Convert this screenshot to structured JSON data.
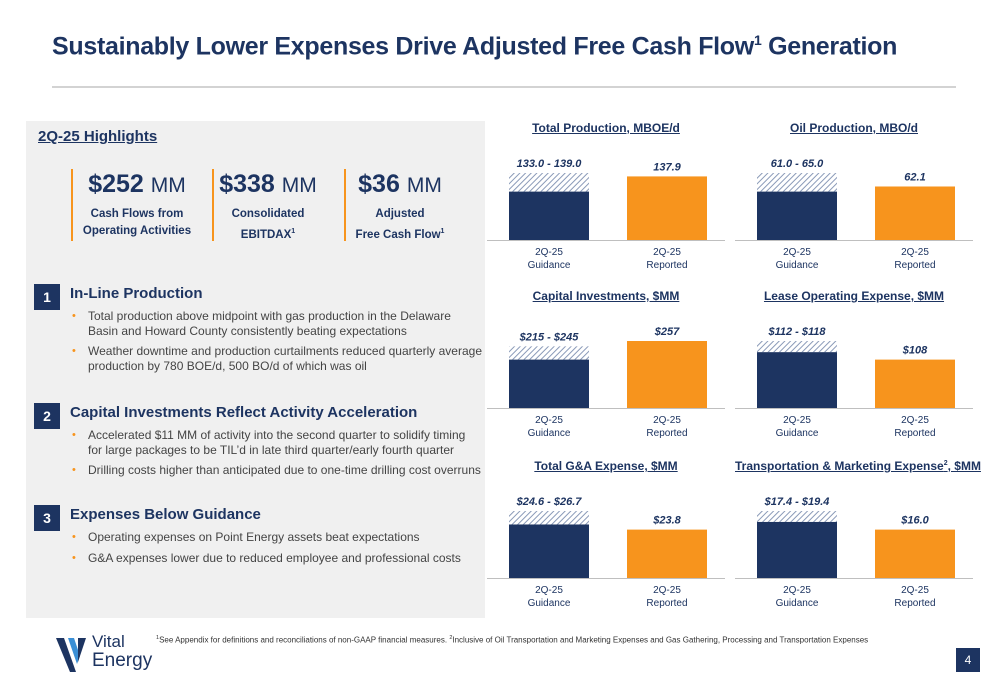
{
  "title": {
    "main": "Sustainably Lower Expenses Drive Adjusted Free Cash Flow",
    "sup": "1",
    "end": " Generation"
  },
  "highlights": {
    "heading": "2Q-25 Highlights",
    "kpis": [
      {
        "value": "$252",
        "unit": "MM",
        "line1": "Cash Flows from",
        "line2": "Operating Activities",
        "sup": ""
      },
      {
        "value": "$338",
        "unit": "MM",
        "line1": "Consolidated",
        "line2": "EBITDAX",
        "sup": "1"
      },
      {
        "value": "$36",
        "unit": "MM",
        "line1": "Adjusted",
        "line2": "Free Cash Flow",
        "sup": "1"
      }
    ],
    "sections": [
      {
        "num": "1",
        "title": "In-Line Production",
        "bullets": [
          "Total production above midpoint with gas production in the Delaware Basin and Howard County consistently beating expectations",
          "Weather downtime and production curtailments reduced quarterly average production by 780 BOE/d, 500 BO/d of which was oil"
        ]
      },
      {
        "num": "2",
        "title": "Capital Investments Reflect Activity Acceleration",
        "bullets": [
          "Accelerated $11 MM of activity into the second quarter to solidify timing for large packages to be TIL’d in late third quarter/early fourth quarter",
          "Drilling costs higher than anticipated due to one-time drilling cost overruns"
        ]
      },
      {
        "num": "3",
        "title": "Expenses Below Guidance",
        "bullets": [
          "Operating expenses on Point Energy assets beat expectations",
          "G&A expenses lower due to reduced employee and professional costs"
        ]
      }
    ]
  },
  "chart_data": [
    {
      "type": "bar",
      "title": "Total Production, MBOE/d",
      "title_sup": "",
      "categories": [
        "2Q-25 Guidance",
        "2Q-25 Reported"
      ],
      "guidance_range": [
        133.0,
        139.0
      ],
      "guidance_label": "133.0 - 139.0",
      "reported": 137.9,
      "reported_label": "137.9"
    },
    {
      "type": "bar",
      "title": "Oil Production, MBO/d",
      "title_sup": "",
      "categories": [
        "2Q-25 Guidance",
        "2Q-25 Reported"
      ],
      "guidance_range": [
        61.0,
        65.0
      ],
      "guidance_label": "61.0 - 65.0",
      "reported": 62.1,
      "reported_label": "62.1"
    },
    {
      "type": "bar",
      "title": "Capital Investments, $MM",
      "title_sup": "",
      "categories": [
        "2Q-25 Guidance",
        "2Q-25 Reported"
      ],
      "guidance_range": [
        215,
        245
      ],
      "guidance_label": "$215 - $245",
      "reported": 257,
      "reported_label": "$257"
    },
    {
      "type": "bar",
      "title": "Lease Operating Expense, $MM",
      "title_sup": "",
      "categories": [
        "2Q-25 Guidance",
        "2Q-25 Reported"
      ],
      "guidance_range": [
        112,
        118
      ],
      "guidance_label": "$112 - $118",
      "reported": 108,
      "reported_label": "$108"
    },
    {
      "type": "bar",
      "title": "Total G&A Expense, $MM",
      "title_sup": "",
      "categories": [
        "2Q-25 Guidance",
        "2Q-25 Reported"
      ],
      "guidance_range": [
        24.6,
        26.7
      ],
      "guidance_label": "$24.6 - $26.7",
      "reported": 23.8,
      "reported_label": "$23.8"
    },
    {
      "type": "bar",
      "title": "Transportation & Marketing Expense",
      "title_sup": "2",
      "title_end": ", $MM",
      "categories": [
        "2Q-25 Guidance",
        "2Q-25 Reported"
      ],
      "guidance_range": [
        17.4,
        19.4
      ],
      "guidance_label": "$17.4 - $19.4",
      "reported": 16.0,
      "reported_label": "$16.0"
    }
  ],
  "colors": {
    "navy": "#1d3461",
    "orange": "#f7941d",
    "hatch": "#8a9ab8"
  },
  "footnote": {
    "sup1": "1",
    "text1": "See Appendix for definitions and reconciliations of non-GAAP financial measures. ",
    "sup2": "2",
    "text2": "Inclusive of Oil Transportation and Marketing Expenses and Gas Gathering, Processing and Transportation Expenses"
  },
  "logo": {
    "line1": "Vital",
    "line2": "Energy",
    "icon": "vital-energy-logo-icon"
  },
  "page_number": "4"
}
